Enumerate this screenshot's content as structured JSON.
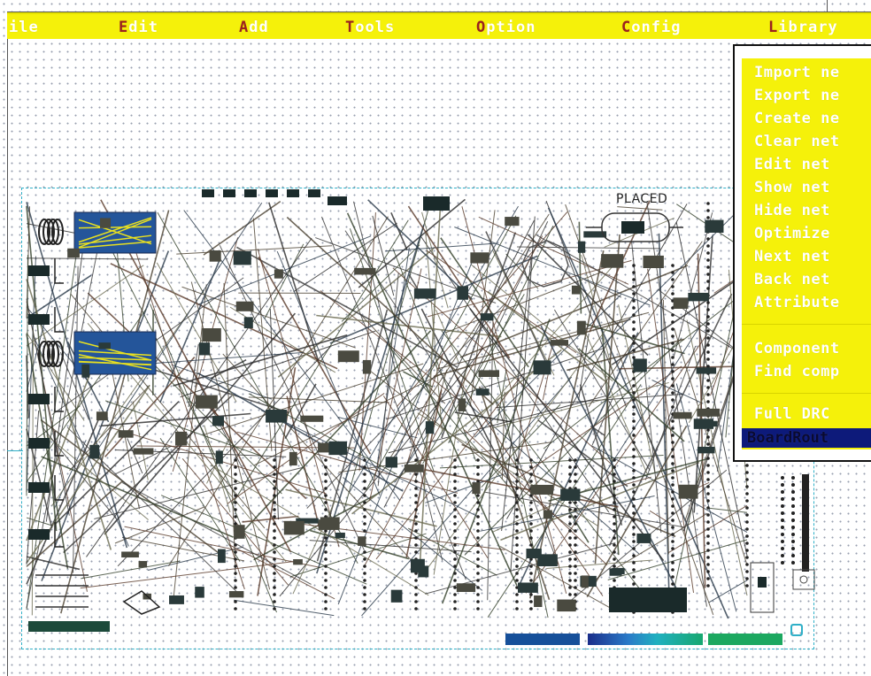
{
  "menubar": {
    "items": [
      {
        "hot": "",
        "rest": "ile",
        "label": "ile"
      },
      {
        "hot": "E",
        "rest": "dit",
        "label": "Edit"
      },
      {
        "hot": "A",
        "rest": "dd",
        "label": "Add"
      },
      {
        "hot": "T",
        "rest": "ools",
        "label": "Tools"
      },
      {
        "hot": "O",
        "rest": "ption",
        "label": "Option"
      },
      {
        "hot": "C",
        "rest": "onfig",
        "label": "Config"
      },
      {
        "hot": "L",
        "rest": "ibrary",
        "label": "Library"
      }
    ]
  },
  "net_menu": {
    "items": [
      "Import ne",
      "Export ne",
      "Create ne",
      "Clear net",
      "Edit net",
      "Show net",
      "Hide net",
      "Optimize",
      "Next net",
      "Back net",
      "Attribute"
    ],
    "items2": [
      "Component",
      "Find comp"
    ],
    "items3": [
      "Full DRC"
    ],
    "selected": "BoardRout"
  },
  "board": {
    "placed_label": "PLACED"
  },
  "colors": {
    "menu_bg": "#f5f10a",
    "menu_text": "#ffffff",
    "hotkey": "#9b2020",
    "selection": "#0d1a7a",
    "board_outline": "#2fb0c8",
    "component_dark": "#1a2a2a"
  }
}
